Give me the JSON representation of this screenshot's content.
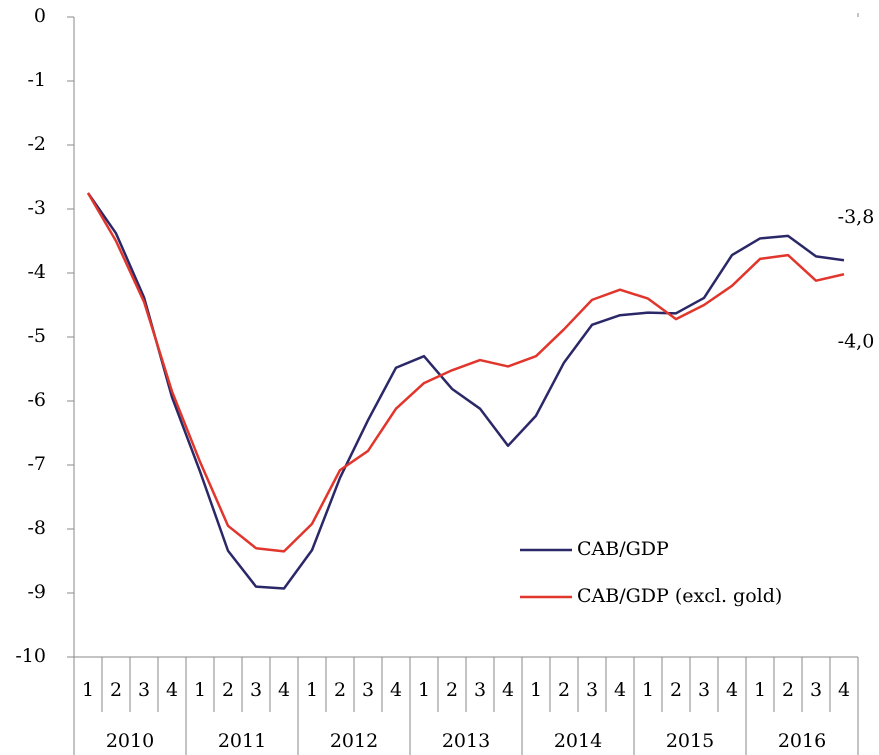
{
  "chart_data": {
    "type": "line",
    "categories": [
      "1",
      "2",
      "3",
      "4",
      "1",
      "2",
      "3",
      "4",
      "1",
      "2",
      "3",
      "4",
      "1",
      "2",
      "3",
      "4",
      "1",
      "2",
      "3",
      "4",
      "1",
      "2",
      "3",
      "4",
      "1",
      "2",
      "3",
      "4"
    ],
    "category_groups": [
      "2010",
      "2011",
      "2012",
      "2013",
      "2014",
      "2015",
      "2016"
    ],
    "series": [
      {
        "name": "CAB/GDP",
        "color": "#2b2868",
        "values": [
          -2.75,
          -3.38,
          -4.38,
          -5.94,
          -7.1,
          -8.34,
          -8.9,
          -8.93,
          -8.33,
          -7.2,
          -6.3,
          -5.48,
          -5.3,
          -5.81,
          -6.12,
          -6.7,
          -6.23,
          -5.4,
          -4.81,
          -4.66,
          -4.62,
          -4.63,
          -4.39,
          -3.72,
          -3.46,
          -3.42,
          -3.74,
          -3.8
        ],
        "value_labels": [
          null,
          null,
          null,
          null,
          null,
          null,
          null,
          null,
          null,
          null,
          null,
          null,
          null,
          null,
          null,
          null,
          null,
          null,
          null,
          null,
          null,
          null,
          null,
          null,
          null,
          null,
          null,
          "-3,8"
        ]
      },
      {
        "name": "CAB/GDP (excl. gold)",
        "color": "#e0362c",
        "values": [
          -2.75,
          -3.5,
          -4.45,
          -5.85,
          -6.95,
          -7.95,
          -8.3,
          -8.35,
          -7.92,
          -7.08,
          -6.78,
          -6.12,
          -5.72,
          -5.52,
          -5.36,
          -5.46,
          -5.3,
          -4.88,
          -4.42,
          -4.26,
          -4.4,
          -4.72,
          -4.5,
          -4.2,
          -3.78,
          -3.72,
          -4.12,
          -4.02
        ],
        "value_labels": [
          null,
          null,
          null,
          null,
          null,
          null,
          null,
          null,
          null,
          null,
          null,
          null,
          null,
          null,
          null,
          null,
          null,
          null,
          null,
          null,
          null,
          null,
          null,
          null,
          null,
          null,
          null,
          "-4,0"
        ]
      }
    ],
    "ylim": [
      -10,
      0
    ],
    "yticks": [
      0,
      -1,
      -2,
      -3,
      -4,
      -5,
      -6,
      -7,
      -8,
      -9,
      -10
    ],
    "grid": false,
    "legend": "lower right"
  }
}
